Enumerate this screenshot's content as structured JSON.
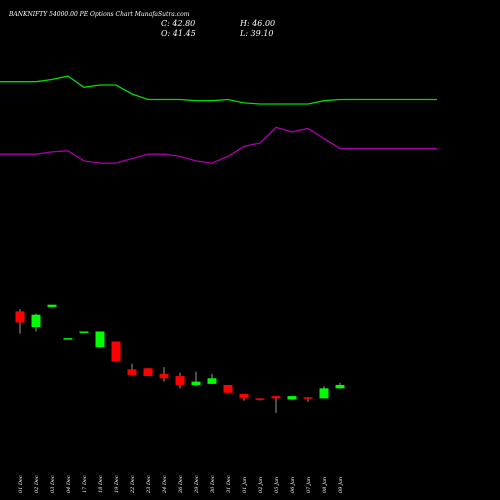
{
  "header": {
    "title": "BANKNIFTY 54000.00 PE Options Chart MunafaSutra.com",
    "close": "C: 42.80",
    "high": "H: 46.00",
    "open": "O: 41.45",
    "low": "L: 39.10"
  },
  "colors": {
    "background": "#000000",
    "green_line": "#00dd00",
    "purple_line": "#aa00aa",
    "bull": "#00ff00",
    "bear": "#ff0000",
    "wick": "#999999",
    "text": "#ffffff"
  },
  "chart_data": {
    "type": "candlestick",
    "categories": [
      "01 Dec",
      "02 Dec",
      "03 Dec",
      "04 Dec",
      "17 Dec",
      "18 Dec",
      "19 Dec",
      "22 Dec",
      "23 Dec",
      "24 Dec",
      "26 Dec",
      "29 Dec",
      "30 Dec",
      "31 Dec",
      "01 Jan",
      "02 Jan",
      "05 Jan",
      "06 Jan",
      "07 Jan",
      "08 Jan",
      "09 Jan"
    ],
    "candles": [
      {
        "open": 214,
        "high": 216,
        "low": 194,
        "close": 204
      },
      {
        "open": 200,
        "high": 212,
        "low": 196,
        "close": 211
      },
      {
        "open": 218,
        "high": 220,
        "low": 218,
        "close": 220
      },
      {
        "open": 189,
        "high": 190,
        "low": 189,
        "close": 190
      },
      {
        "open": 196,
        "high": 196,
        "low": 196,
        "close": 196
      },
      {
        "open": 182,
        "high": 196,
        "low": 181,
        "close": 196
      },
      {
        "open": 187,
        "high": 187,
        "low": 169,
        "close": 169
      },
      {
        "open": 162,
        "high": 167,
        "low": 157,
        "close": 157
      },
      {
        "open": 163,
        "high": 163,
        "low": 156,
        "close": 156
      },
      {
        "open": 158,
        "high": 164,
        "low": 151,
        "close": 154
      },
      {
        "open": 156,
        "high": 159,
        "low": 145,
        "close": 148
      },
      {
        "open": 148,
        "high": 160,
        "low": 147,
        "close": 151
      },
      {
        "open": 149,
        "high": 158,
        "low": 149,
        "close": 154
      },
      {
        "open": 148,
        "high": 148,
        "low": 141,
        "close": 141
      },
      {
        "open": 140,
        "high": 140,
        "low": 134,
        "close": 136
      },
      {
        "open": 136,
        "high": 136,
        "low": 134,
        "close": 135
      },
      {
        "open": 138,
        "high": 138,
        "low": 123,
        "close": 136
      },
      {
        "open": 135,
        "high": 138,
        "low": 135,
        "close": 138
      },
      {
        "open": 137,
        "high": 137,
        "low": 133,
        "close": 136
      },
      {
        "open": 136,
        "high": 147,
        "low": 136,
        "close": 145
      },
      {
        "open": 145,
        "high": 150,
        "low": 145,
        "close": 148
      }
    ],
    "green_line": [
      420,
      420,
      422,
      425,
      415,
      417,
      417,
      409,
      404,
      404,
      404,
      403,
      403,
      404,
      401,
      400,
      400,
      400,
      400,
      403,
      404
    ],
    "purple_line": [
      355,
      355,
      357,
      358,
      349,
      347,
      347,
      351,
      355,
      355,
      353,
      349,
      347,
      353,
      362,
      365,
      379,
      375,
      378,
      369,
      360
    ]
  }
}
